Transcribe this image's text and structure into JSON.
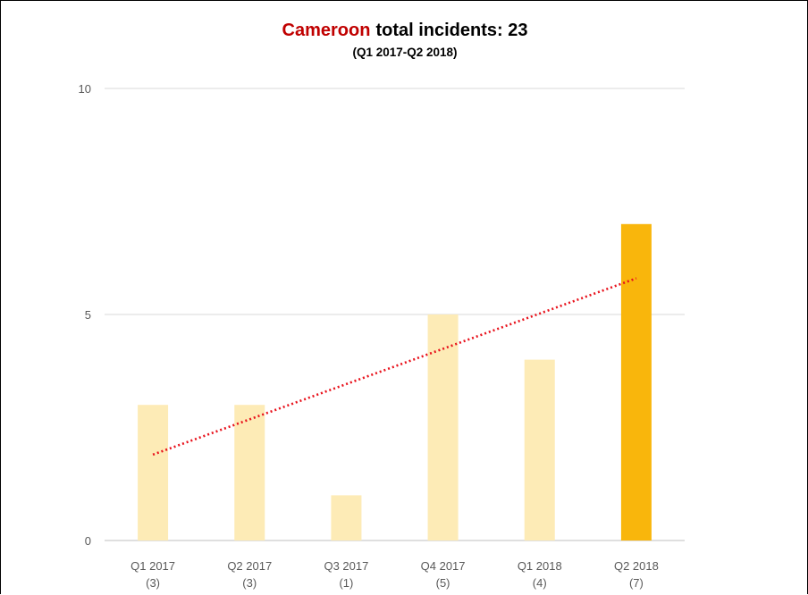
{
  "chart_data": {
    "type": "bar",
    "title_highlight": "Cameroon",
    "title_rest": "total incidents: 23",
    "subtitle": "(Q1 2017-Q2 2018)",
    "categories": [
      "Q1 2017",
      "Q2 2017",
      "Q3 2017",
      "Q4 2017",
      "Q1 2018",
      "Q2 2018"
    ],
    "category_counts": [
      "(3)",
      "(3)",
      "(1)",
      "(5)",
      "(4)",
      "(7)"
    ],
    "values": [
      3,
      3,
      1,
      5,
      4,
      7
    ],
    "ylim": [
      0,
      10
    ],
    "yticks": [
      0,
      5,
      10
    ],
    "grid": true,
    "trendline": {
      "type": "linear",
      "style": "dotted",
      "color": "#e8111b",
      "start": 1.9,
      "end": 5.8
    },
    "colors": {
      "highlight_text": "#c00000",
      "bar": "#fdebb6",
      "bar_highlight": "#f9b60c",
      "grid": "#d9d9d9",
      "axis": "#bfbfbf"
    },
    "highlight_index": 5,
    "xlabel": "",
    "ylabel": ""
  }
}
